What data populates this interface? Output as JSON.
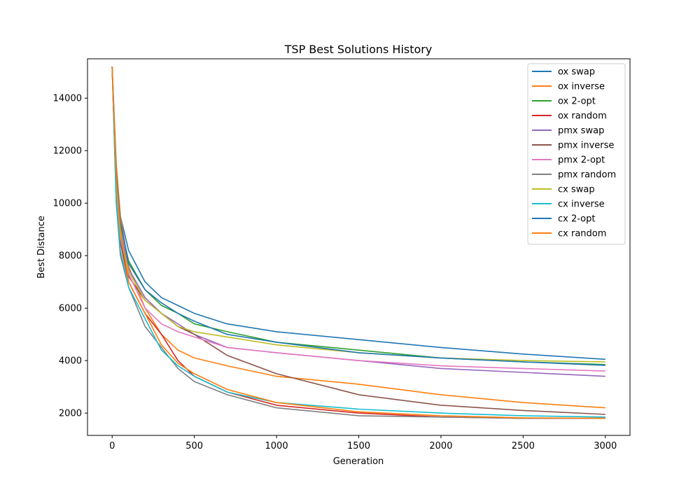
{
  "chart_data": {
    "type": "line",
    "title": "TSP Best Solutions History",
    "xlabel": "Generation",
    "ylabel": "Best Distance",
    "xlim": [
      -150,
      3150
    ],
    "ylim": [
      1150,
      15500
    ],
    "xticks": [
      0,
      500,
      1000,
      1500,
      2000,
      2500,
      3000
    ],
    "yticks": [
      2000,
      4000,
      6000,
      8000,
      10000,
      12000,
      14000
    ],
    "grid": false,
    "legend_position": "top-right",
    "series": [
      {
        "name": "ox swap",
        "color": "#1f77b4",
        "x": [
          0,
          25,
          50,
          100,
          200,
          300,
          400,
          500,
          700,
          1000,
          1500,
          2000,
          2500,
          3000
        ],
        "y": [
          15200,
          11000,
          9500,
          8200,
          7000,
          6400,
          6100,
          5800,
          5400,
          5100,
          4800,
          4500,
          4250,
          4050
        ]
      },
      {
        "name": "ox inverse",
        "color": "#ff7f0e",
        "x": [
          0,
          25,
          50,
          100,
          200,
          300,
          400,
          500,
          700,
          1000,
          1500,
          2000,
          2500,
          3000
        ],
        "y": [
          15200,
          11500,
          9500,
          7600,
          6000,
          5000,
          4400,
          4100,
          3800,
          3400,
          3100,
          2700,
          2400,
          2200
        ]
      },
      {
        "name": "ox 2-opt",
        "color": "#2ca02c",
        "x": [
          0,
          25,
          50,
          100,
          200,
          300,
          400,
          500,
          700,
          1000,
          1500,
          2000,
          2500,
          3000
        ],
        "y": [
          15200,
          11000,
          9200,
          7800,
          6700,
          6100,
          5800,
          5400,
          5100,
          4700,
          4400,
          4100,
          3950,
          3850
        ]
      },
      {
        "name": "ox random",
        "color": "#d62728",
        "x": [
          0,
          25,
          50,
          100,
          200,
          300,
          400,
          500,
          700,
          1000,
          1500,
          2000,
          2500,
          3000
        ],
        "y": [
          15200,
          10500,
          8500,
          7000,
          5800,
          5000,
          4000,
          3400,
          2800,
          2300,
          2000,
          1850,
          1800,
          1800
        ]
      },
      {
        "name": "pmx swap",
        "color": "#9467bd",
        "x": [
          0,
          25,
          50,
          100,
          200,
          300,
          400,
          500,
          700,
          1000,
          1500,
          2000,
          2500,
          3000
        ],
        "y": [
          15200,
          10800,
          9000,
          7500,
          6400,
          5800,
          5400,
          5000,
          4500,
          4300,
          4000,
          3700,
          3550,
          3400
        ]
      },
      {
        "name": "pmx inverse",
        "color": "#8c564b",
        "x": [
          0,
          25,
          50,
          100,
          200,
          300,
          400,
          500,
          700,
          1000,
          1500,
          2000,
          2500,
          3000
        ],
        "y": [
          15200,
          10200,
          8500,
          7200,
          6300,
          5800,
          5300,
          5000,
          4200,
          3500,
          2700,
          2300,
          2100,
          1950
        ]
      },
      {
        "name": "pmx 2-opt",
        "color": "#e377c2",
        "x": [
          0,
          25,
          50,
          100,
          200,
          300,
          400,
          500,
          700,
          1000,
          1500,
          2000,
          2500,
          3000
        ],
        "y": [
          15200,
          10500,
          8700,
          7300,
          6000,
          5400,
          5100,
          4900,
          4500,
          4300,
          4000,
          3800,
          3700,
          3600
        ]
      },
      {
        "name": "pmx random",
        "color": "#7f7f7f",
        "x": [
          0,
          25,
          50,
          100,
          200,
          300,
          400,
          500,
          700,
          1000,
          1500,
          2000,
          2500,
          3000
        ],
        "y": [
          15200,
          10000,
          8000,
          6800,
          5300,
          4500,
          3700,
          3200,
          2700,
          2200,
          1900,
          1850,
          1800,
          1800
        ]
      },
      {
        "name": "cx swap",
        "color": "#bcbd22",
        "x": [
          0,
          25,
          50,
          100,
          200,
          300,
          400,
          500,
          700,
          1000,
          1500,
          2000,
          2500,
          3000
        ],
        "y": [
          15200,
          10800,
          8800,
          7400,
          6300,
          5800,
          5300,
          5100,
          4900,
          4600,
          4300,
          4100,
          4000,
          3950
        ]
      },
      {
        "name": "cx inverse",
        "color": "#17becf",
        "x": [
          0,
          25,
          50,
          100,
          200,
          300,
          400,
          500,
          700,
          1000,
          1500,
          2000,
          2500,
          3000
        ],
        "y": [
          15200,
          10000,
          8200,
          6800,
          5600,
          4400,
          3800,
          3400,
          2800,
          2400,
          2150,
          2000,
          1900,
          1850
        ]
      },
      {
        "name": "cx 2-opt",
        "color": "#1f77b4",
        "x": [
          0,
          25,
          50,
          100,
          200,
          300,
          400,
          500,
          700,
          1000,
          1500,
          2000,
          2500,
          3000
        ],
        "y": [
          15200,
          11200,
          9300,
          7700,
          6700,
          6200,
          5800,
          5500,
          5000,
          4700,
          4300,
          4100,
          3950,
          3820
        ]
      },
      {
        "name": "cx random",
        "color": "#ff7f0e",
        "x": [
          0,
          25,
          50,
          100,
          200,
          300,
          400,
          500,
          700,
          1000,
          1500,
          2000,
          2500,
          3000
        ],
        "y": [
          15200,
          11000,
          9000,
          7000,
          5800,
          4600,
          3900,
          3500,
          2900,
          2400,
          2050,
          1900,
          1820,
          1800
        ]
      }
    ]
  }
}
